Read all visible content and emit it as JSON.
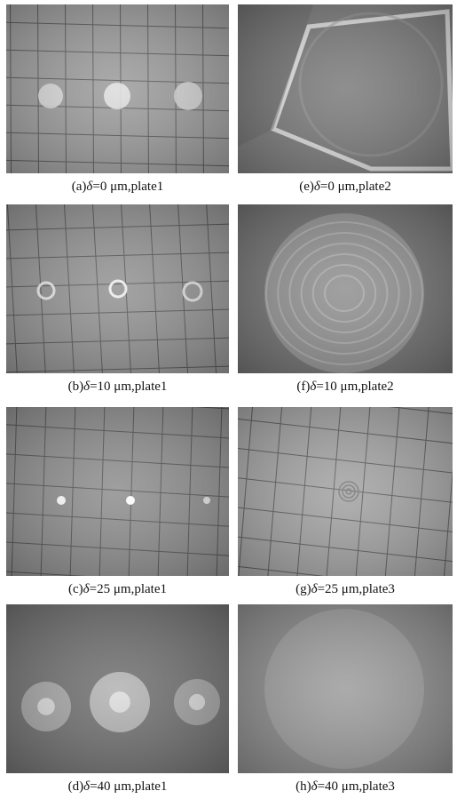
{
  "panels": [
    {
      "label": "(a)",
      "symbol": "δ",
      "text": "=0 μm,plate1"
    },
    {
      "label": "(b)",
      "symbol": "δ",
      "text": "=10 μm,plate1"
    },
    {
      "label": "(c)",
      "symbol": "δ",
      "text": "=25 μm,plate1"
    },
    {
      "label": "(d)",
      "symbol": "δ",
      "text": "=40 μm,plate1"
    },
    {
      "label": "(e)",
      "symbol": "δ",
      "text": "=0 μm,plate2"
    },
    {
      "label": "(f)",
      "symbol": "δ",
      "text": "=10 μm,plate2"
    },
    {
      "label": "(g)",
      "symbol": "δ",
      "text": "=25 μm,plate3"
    },
    {
      "label": "(h)",
      "symbol": "δ",
      "text": "=40 μm,plate3"
    }
  ]
}
